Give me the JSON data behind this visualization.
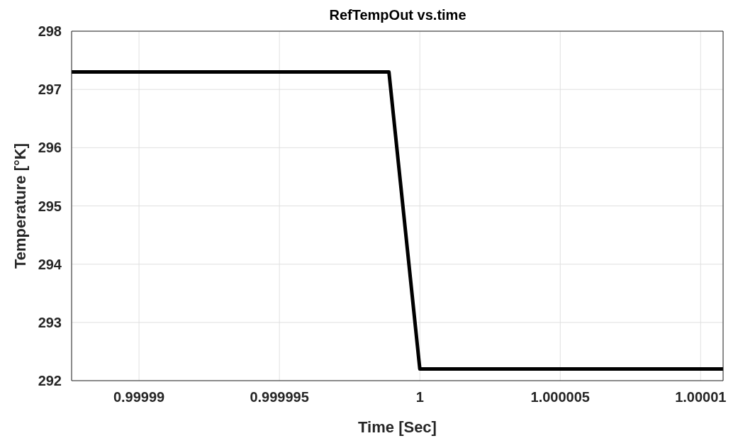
{
  "chart_data": {
    "type": "line",
    "title": "RefTempOut vs.time",
    "xlabel": "Time [Sec]",
    "ylabel": "Temperature [°K]",
    "series": [
      {
        "color": "#000000",
        "x": [
          0.9999876,
          0.9999989,
          1.0,
          1.0000108
        ],
        "values": [
          297.3,
          297.3,
          292.2,
          292.2
        ]
      }
    ],
    "xlim": [
      0.9999876,
      1.0000108
    ],
    "xticks": [
      0.99999,
      0.999995,
      1,
      1.000005,
      1.00001
    ],
    "ylim": [
      292,
      298
    ],
    "yticks": [
      292,
      293,
      294,
      295,
      296,
      297,
      298
    ],
    "grid": true,
    "marker": "none",
    "line_style": "solid",
    "legend": false
  }
}
